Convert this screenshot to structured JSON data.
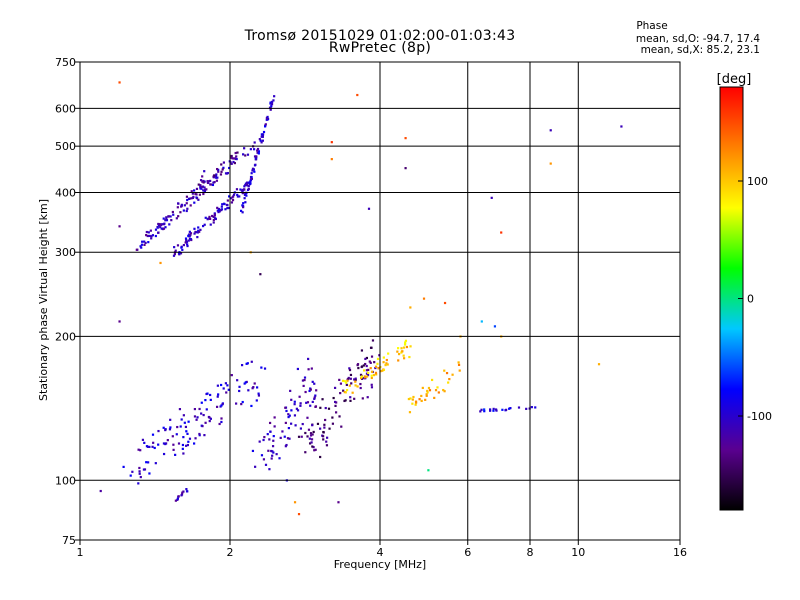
{
  "header": {
    "title_line1": "Tromsø 20151029 01:02:00-01:03:43",
    "title_line2": "RwPretec (8p)"
  },
  "stats": {
    "heading": "Phase",
    "line_o": "mean, sd,O: -94.7, 17.4",
    "line_x": "mean, sd,X: 85.2, 23.1"
  },
  "colorbar": {
    "unit": "[deg]",
    "ticks": [
      "100",
      "0",
      "-100"
    ],
    "tick_values": [
      100,
      0,
      -100
    ],
    "range": [
      -180,
      180
    ],
    "colors": [
      "#000000",
      "#5a0090",
      "#0000ff",
      "#00c8ff",
      "#00ff00",
      "#ffff00",
      "#ff8000",
      "#ff0000"
    ]
  },
  "chart_data": {
    "type": "scatter",
    "title": "Tromsø 20151029 01:02:00-01:03:43",
    "subtitle": "RwPretec (8p)",
    "xlabel": "Frequency [MHz]",
    "ylabel": "Stationary phase Virtual Height [km]",
    "xscale": "log",
    "yscale": "log",
    "xlim": [
      1,
      16
    ],
    "ylim": [
      75,
      750
    ],
    "xticks": [
      1,
      2,
      4,
      6,
      8,
      10,
      16
    ],
    "yticks": [
      75,
      100,
      200,
      300,
      400,
      500,
      600,
      750
    ],
    "grid": true,
    "vgrid": [
      2,
      4,
      6,
      8,
      10
    ],
    "hgrid": [
      100,
      200,
      300,
      400,
      500,
      600
    ],
    "color_value": "phase [deg]",
    "traces": [
      {
        "x0": 1.3,
        "x1": 2.05,
        "y0": 305,
        "y1": 470,
        "n": 130,
        "phase": -110,
        "jitter": 0.06
      },
      {
        "x0": 1.55,
        "x1": 2.2,
        "y0": 300,
        "y1": 420,
        "n": 110,
        "phase": -105,
        "jitter": 0.05
      },
      {
        "x0": 2.1,
        "x1": 2.45,
        "y0": 360,
        "y1": 640,
        "n": 70,
        "phase": -100,
        "jitter": 0.03
      },
      {
        "x0": 1.7,
        "x1": 2.25,
        "y0": 420,
        "y1": 500,
        "n": 30,
        "phase": -120,
        "jitter": 0.05
      },
      {
        "x0": 1.25,
        "x1": 2.3,
        "y0": 105,
        "y1": 165,
        "n": 130,
        "phase": -100,
        "jitter": 0.2
      },
      {
        "x0": 2.3,
        "x1": 3.0,
        "y0": 110,
        "y1": 170,
        "n": 80,
        "phase": -110,
        "jitter": 0.2
      },
      {
        "x0": 2.8,
        "x1": 3.9,
        "y0": 115,
        "y1": 180,
        "n": 110,
        "phase": -135,
        "jitter": 0.2
      },
      {
        "x0": 3.4,
        "x1": 4.6,
        "y0": 155,
        "y1": 190,
        "n": 60,
        "phase": 100,
        "jitter": 0.08
      },
      {
        "x0": 4.4,
        "x1": 5.8,
        "y0": 140,
        "y1": 170,
        "n": 35,
        "phase": 110,
        "jitter": 0.1
      },
      {
        "x0": 6.3,
        "x1": 8.3,
        "y0": 140,
        "y1": 142,
        "n": 20,
        "phase": -90,
        "jitter": 0.01
      },
      {
        "x0": 1.55,
        "x1": 1.65,
        "y0": 91,
        "y1": 96,
        "n": 12,
        "phase": -110,
        "jitter": 0.02
      }
    ],
    "points": [
      {
        "x": 1.2,
        "y": 680,
        "phase": 150
      },
      {
        "x": 1.2,
        "y": 340,
        "phase": -130
      },
      {
        "x": 1.2,
        "y": 215,
        "phase": -130
      },
      {
        "x": 1.1,
        "y": 95,
        "phase": -120
      },
      {
        "x": 3.2,
        "y": 470,
        "phase": 130
      },
      {
        "x": 3.2,
        "y": 510,
        "phase": 160
      },
      {
        "x": 3.8,
        "y": 370,
        "phase": -110
      },
      {
        "x": 3.6,
        "y": 640,
        "phase": 150
      },
      {
        "x": 4.5,
        "y": 450,
        "phase": -140
      },
      {
        "x": 4.5,
        "y": 520,
        "phase": 150
      },
      {
        "x": 6.7,
        "y": 390,
        "phase": -110
      },
      {
        "x": 7.0,
        "y": 330,
        "phase": 160
      },
      {
        "x": 8.8,
        "y": 540,
        "phase": -110
      },
      {
        "x": 12.2,
        "y": 550,
        "phase": -110
      },
      {
        "x": 8.8,
        "y": 460,
        "phase": 120
      },
      {
        "x": 11.0,
        "y": 175,
        "phase": 110
      },
      {
        "x": 4.6,
        "y": 230,
        "phase": 110
      },
      {
        "x": 4.9,
        "y": 240,
        "phase": 130
      },
      {
        "x": 5.4,
        "y": 235,
        "phase": 150
      },
      {
        "x": 5.8,
        "y": 200,
        "phase": 110
      },
      {
        "x": 2.6,
        "y": 100,
        "phase": -90
      },
      {
        "x": 2.7,
        "y": 90,
        "phase": 120
      },
      {
        "x": 2.75,
        "y": 85,
        "phase": 150
      },
      {
        "x": 3.3,
        "y": 90,
        "phase": -130
      },
      {
        "x": 5.0,
        "y": 105,
        "phase": 0
      },
      {
        "x": 6.4,
        "y": 215,
        "phase": -30
      },
      {
        "x": 6.8,
        "y": 210,
        "phase": -60
      },
      {
        "x": 2.2,
        "y": 300,
        "phase": 110
      },
      {
        "x": 2.3,
        "y": 270,
        "phase": -150
      },
      {
        "x": 1.45,
        "y": 285,
        "phase": 120
      },
      {
        "x": 7.0,
        "y": 200,
        "phase": 110
      }
    ]
  }
}
